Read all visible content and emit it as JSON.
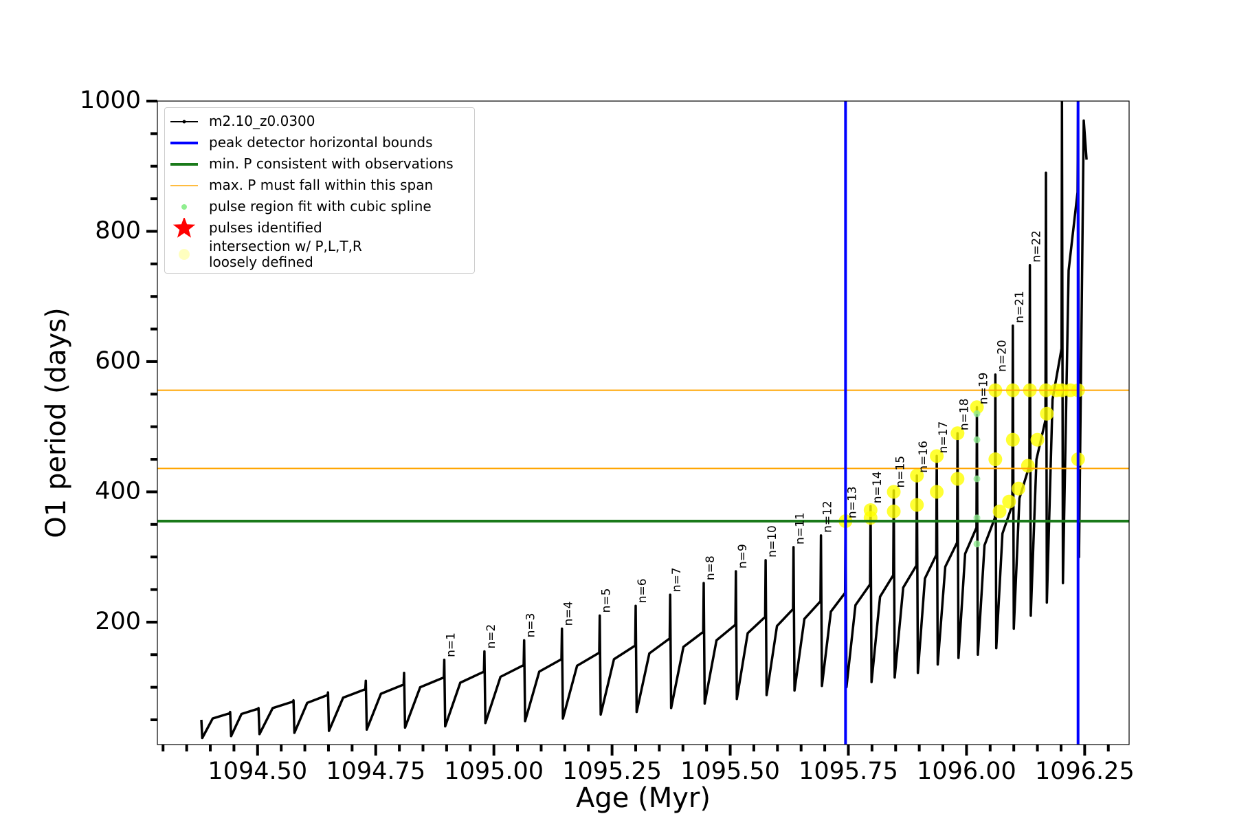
{
  "chart_data": {
    "type": "line",
    "xlabel": "Age (Myr)",
    "ylabel": "O1 period (days)",
    "xlim": [
      1094.288,
      1096.344
    ],
    "ylim": [
      12,
      1000
    ],
    "xticks": [
      {
        "value": 1094.5,
        "label": "1094.50"
      },
      {
        "value": 1094.75,
        "label": "1094.75"
      },
      {
        "value": 1095,
        "label": "1095.00"
      },
      {
        "value": 1095.25,
        "label": "1095.25"
      },
      {
        "value": 1095.5,
        "label": "1095.50"
      },
      {
        "value": 1095.75,
        "label": "1095.75"
      },
      {
        "value": 1096,
        "label": "1096.00"
      },
      {
        "value": 1096.25,
        "label": "1096.25"
      }
    ],
    "xminorticks": [
      1094.3,
      1094.35,
      1094.4,
      1094.45,
      1094.55,
      1094.6,
      1094.65,
      1094.7,
      1094.8,
      1094.85,
      1094.9,
      1094.95,
      1095.05,
      1095.1,
      1095.15,
      1095.2,
      1095.3,
      1095.35,
      1095.4,
      1095.45,
      1095.55,
      1095.6,
      1095.65,
      1095.7,
      1095.8,
      1095.85,
      1095.9,
      1095.95,
      1096.05,
      1096.1,
      1096.15,
      1096.2,
      1096.3
    ],
    "yticks": [
      200,
      400,
      600,
      800,
      1000
    ],
    "yminorticks": [
      50,
      100,
      150,
      250,
      300,
      350,
      450,
      500,
      550,
      650,
      700,
      750,
      850,
      900,
      950
    ],
    "series": [
      {
        "name": "m2.10_z0.0300",
        "color": "#000000",
        "kind": "line",
        "x": [
          1094.381,
          1094.383,
          1094.405,
          1094.441,
          1094.442,
          1094.444,
          1094.466,
          1094.501,
          1094.502,
          1094.504,
          1094.532,
          1094.575,
          1094.576,
          1094.578,
          1094.605,
          1094.648,
          1094.649,
          1094.651,
          1094.681,
          1094.728,
          1094.729,
          1094.731,
          1094.761,
          1094.809,
          1094.81,
          1094.812,
          1094.844,
          1094.894,
          1094.895,
          1094.897,
          1094.929,
          1094.979,
          1094.98,
          1094.982,
          1095.014,
          1095.063,
          1095.064,
          1095.066,
          1095.096,
          1095.143,
          1095.144,
          1095.146,
          1095.176,
          1095.223,
          1095.224,
          1095.226,
          1095.254,
          1095.299,
          1095.3,
          1095.302,
          1095.329,
          1095.372,
          1095.373,
          1095.375,
          1095.401,
          1095.443,
          1095.444,
          1095.446,
          1095.471,
          1095.511,
          1095.512,
          1095.514,
          1095.537,
          1095.574,
          1095.575,
          1095.577,
          1095.599,
          1095.633,
          1095.634,
          1095.636,
          1095.657,
          1095.691,
          1095.692,
          1095.694,
          1095.713,
          1095.743,
          1095.744,
          1095.746,
          1095.765,
          1095.796,
          1095.797,
          1095.799,
          1095.817,
          1095.845,
          1095.846,
          1095.848,
          1095.866,
          1095.894,
          1095.895,
          1095.897,
          1095.912,
          1095.936,
          1095.937,
          1095.939,
          1095.955,
          1095.98,
          1095.981,
          1095.983,
          1095.997,
          1096.021,
          1096.022,
          1096.024,
          1096.038,
          1096.06,
          1096.061,
          1096.063,
          1096.076,
          1096.097,
          1096.098,
          1096.1,
          1096.112,
          1096.133,
          1096.134,
          1096.136,
          1096.148,
          1096.167,
          1096.168,
          1096.17,
          1096.182,
          1096.201,
          1096.202,
          1096.204,
          1096.216,
          1096.235,
          1096.236,
          1096.238,
          1096.248,
          1096.254
        ],
        "y": [
          50,
          22,
          52,
          60,
          62,
          25,
          59,
          67,
          68,
          28,
          68,
          78,
          80,
          30,
          76,
          88,
          92,
          33,
          84,
          97,
          110,
          35,
          90,
          104,
          122,
          38,
          100,
          115,
          142,
          40,
          107,
          124,
          155,
          45,
          116,
          134,
          172,
          48,
          124,
          143,
          190,
          52,
          133,
          153,
          210,
          58,
          143,
          164,
          225,
          62,
          152,
          175,
          242,
          68,
          162,
          185,
          260,
          75,
          172,
          196,
          278,
          82,
          183,
          208,
          295,
          88,
          194,
          220,
          315,
          95,
          205,
          232,
          333,
          102,
          216,
          245,
          355,
          100,
          226,
          258,
          378,
          108,
          239,
          272,
          402,
          115,
          253,
          287,
          425,
          122,
          267,
          303,
          455,
          135,
          285,
          322,
          490,
          145,
          305,
          345,
          530,
          150,
          318,
          360,
          580,
          160,
          336,
          380,
          655,
          190,
          390,
          440,
          748,
          210,
          450,
          510,
          890,
          230,
          542,
          620,
          1000,
          260,
          740,
          860,
          1000,
          300,
          970,
          910
        ]
      },
      {
        "name": "pulse region fit with cubic spline",
        "color": "#90ee90",
        "kind": "scatter",
        "x": [
          1096.022,
          1096.022,
          1096.022,
          1096.022,
          1096.022
        ],
        "y": [
          320,
          360,
          420,
          480,
          520
        ]
      },
      {
        "name": "pulses identified",
        "color": "#ff0000",
        "kind": "star",
        "x": [],
        "y": []
      },
      {
        "name": "intersection w/ P,L,T,R\nloosely defined",
        "color": "#ffff00",
        "kind": "scatter",
        "x": [
          1095.744,
          1095.797,
          1095.797,
          1095.846,
          1095.846,
          1095.895,
          1095.895,
          1095.937,
          1095.937,
          1095.981,
          1095.981,
          1096.022,
          1096.061,
          1096.061,
          1096.098,
          1096.098,
          1096.134,
          1096.168,
          1096.202,
          1096.236,
          1096.236,
          1096.07,
          1096.09,
          1096.11,
          1096.13,
          1096.15,
          1096.17,
          1096.19,
          1096.22
        ],
        "y": [
          355,
          372,
          360,
          400,
          370,
          425,
          380,
          455,
          400,
          490,
          420,
          530,
          556,
          450,
          556,
          480,
          556,
          556,
          556,
          556,
          450,
          370,
          385,
          405,
          440,
          480,
          520,
          556,
          556
        ]
      }
    ],
    "vlines": {
      "name": "peak detector horizontal bounds",
      "color": "#0000ff",
      "x": [
        1095.744,
        1096.236
      ]
    },
    "hlines": [
      {
        "name": "min. P consistent with observations",
        "color": "#1a7a1a",
        "y": [
          355
        ]
      },
      {
        "name": "max. P must fall within this span",
        "color": "#ffa500",
        "y": [
          436,
          556
        ]
      }
    ],
    "annotations": [
      {
        "text": "n=1",
        "x": 1094.895,
        "y": 142
      },
      {
        "text": "n=2",
        "x": 1094.98,
        "y": 155
      },
      {
        "text": "n=3",
        "x": 1095.064,
        "y": 172
      },
      {
        "text": "n=4",
        "x": 1095.144,
        "y": 190
      },
      {
        "text": "n=5",
        "x": 1095.224,
        "y": 210
      },
      {
        "text": "n=6",
        "x": 1095.3,
        "y": 225
      },
      {
        "text": "n=7",
        "x": 1095.373,
        "y": 242
      },
      {
        "text": "n=8",
        "x": 1095.444,
        "y": 260
      },
      {
        "text": "n=9",
        "x": 1095.512,
        "y": 278
      },
      {
        "text": "n=10",
        "x": 1095.575,
        "y": 295
      },
      {
        "text": "n=11",
        "x": 1095.634,
        "y": 315
      },
      {
        "text": "n=12",
        "x": 1095.692,
        "y": 333
      },
      {
        "text": "n=13",
        "x": 1095.744,
        "y": 355
      },
      {
        "text": "n=14",
        "x": 1095.797,
        "y": 378
      },
      {
        "text": "n=15",
        "x": 1095.846,
        "y": 402
      },
      {
        "text": "n=16",
        "x": 1095.895,
        "y": 425
      },
      {
        "text": "n=17",
        "x": 1095.937,
        "y": 455
      },
      {
        "text": "n=18",
        "x": 1095.981,
        "y": 490
      },
      {
        "text": "n=19",
        "x": 1096.022,
        "y": 530
      },
      {
        "text": "n=20",
        "x": 1096.061,
        "y": 580
      },
      {
        "text": "n=21",
        "x": 1096.098,
        "y": 655
      },
      {
        "text": "n=22",
        "x": 1096.134,
        "y": 748
      }
    ]
  }
}
